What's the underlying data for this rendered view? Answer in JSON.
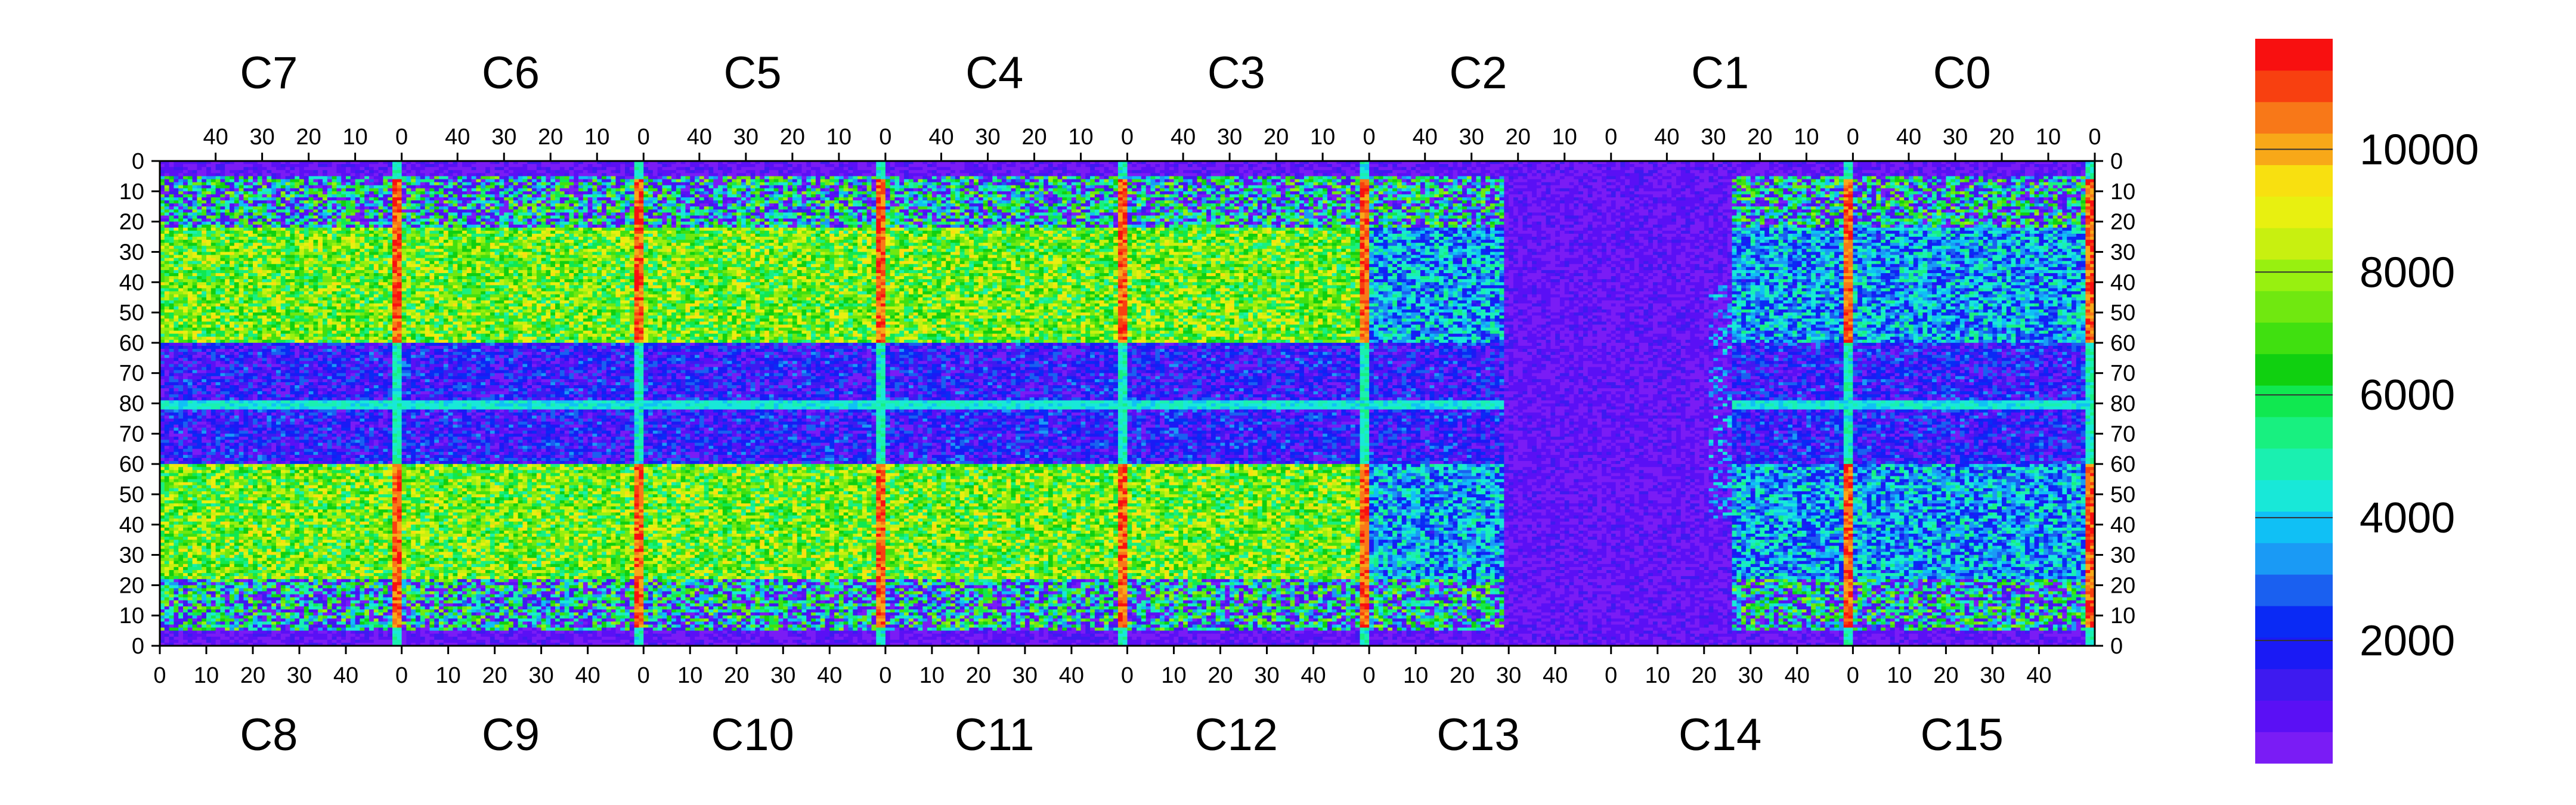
{
  "chart_data": {
    "type": "heatmap",
    "title": "",
    "colorbar": {
      "ticks": [
        2000,
        4000,
        6000,
        8000,
        10000
      ],
      "range": [
        0,
        11800
      ],
      "colors": [
        "#7a1cf5",
        "#5a10f5",
        "#3e1af0",
        "#1a1af5",
        "#0a2af5",
        "#1a60f0",
        "#1a9af5",
        "#10c0f5",
        "#18e8d8",
        "#1af0b0",
        "#18f080",
        "#10e850",
        "#10d010",
        "#40e010",
        "#70e810",
        "#98f010",
        "#c8f010",
        "#e8f010",
        "#f8e010",
        "#f8a818",
        "#f87818",
        "#f84010",
        "#f81010"
      ]
    },
    "top_chips": [
      "C7",
      "C6",
      "C5",
      "C4",
      "C3",
      "C2",
      "C1",
      "C0"
    ],
    "bottom_chips": [
      "C8",
      "C9",
      "C10",
      "C11",
      "C12",
      "C13",
      "C14",
      "C15"
    ],
    "top_tick_labels": [
      "40",
      "30",
      "20",
      "10",
      "0"
    ],
    "bottom_tick_labels": [
      "0",
      "10",
      "20",
      "30",
      "40"
    ],
    "y_tick_labels": [
      "0",
      "10",
      "20",
      "30",
      "40",
      "50",
      "60",
      "70",
      "80",
      "70",
      "60",
      "50",
      "40",
      "30",
      "20",
      "10",
      "0"
    ],
    "cols_per_chip": 52,
    "rows_per_half": 80
  }
}
